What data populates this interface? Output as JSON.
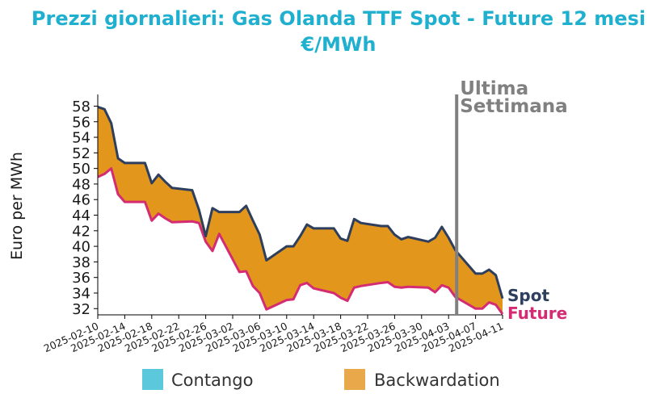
{
  "chart_data": {
    "type": "area",
    "title_line1": "Prezzi giornalieri: Gas Olanda TTF Spot - Future 12 mesi",
    "title_line2": "€/MWh",
    "ylabel": "Euro per MWh",
    "xlabel": "",
    "ylim": [
      31.2,
      59.5
    ],
    "yticks": [
      32,
      34,
      36,
      38,
      40,
      42,
      44,
      46,
      48,
      50,
      52,
      54,
      56,
      58
    ],
    "xticks": [
      "2025-02-10",
      "2025-02-14",
      "2025-02-18",
      "2025-02-22",
      "2025-02-26",
      "2025-03-02",
      "2025-03-06",
      "2025-03-10",
      "2025-03-14",
      "2025-03-18",
      "2025-03-22",
      "2025-03-26",
      "2025-03-30",
      "2025-04-03",
      "2025-04-07",
      "2025-04-11"
    ],
    "x_start": "2025-02-10",
    "x_end": "2025-04-11",
    "dates": [
      "2025-02-10",
      "2025-02-11",
      "2025-02-12",
      "2025-02-13",
      "2025-02-14",
      "2025-02-17",
      "2025-02-18",
      "2025-02-19",
      "2025-02-20",
      "2025-02-21",
      "2025-02-24",
      "2025-02-25",
      "2025-02-26",
      "2025-02-27",
      "2025-02-28",
      "2025-03-03",
      "2025-03-04",
      "2025-03-05",
      "2025-03-06",
      "2025-03-07",
      "2025-03-10",
      "2025-03-11",
      "2025-03-12",
      "2025-03-13",
      "2025-03-14",
      "2025-03-17",
      "2025-03-18",
      "2025-03-19",
      "2025-03-20",
      "2025-03-21",
      "2025-03-24",
      "2025-03-25",
      "2025-03-26",
      "2025-03-27",
      "2025-03-28",
      "2025-03-31",
      "2025-04-01",
      "2025-04-02",
      "2025-04-03",
      "2025-04-04",
      "2025-04-07",
      "2025-04-08",
      "2025-04-09",
      "2025-04-10",
      "2025-04-11"
    ],
    "series": [
      {
        "name": "Spot",
        "color": "#2e3f5e",
        "values": [
          57.9,
          57.6,
          55.8,
          51.3,
          50.7,
          50.7,
          48.1,
          49.2,
          48.3,
          47.5,
          47.2,
          44.7,
          41.3,
          44.9,
          44.4,
          44.4,
          45.2,
          43.3,
          41.5,
          38.2,
          40.0,
          40.0,
          41.3,
          42.8,
          42.3,
          42.3,
          41.0,
          40.7,
          43.5,
          43.0,
          42.6,
          42.6,
          41.5,
          40.9,
          41.2,
          40.6,
          41.1,
          42.5,
          41.1,
          39.5,
          36.5,
          36.5,
          37.0,
          36.3,
          33.3
        ]
      },
      {
        "name": "Future",
        "color": "#d42b73",
        "values": [
          48.9,
          49.3,
          50.0,
          46.7,
          45.7,
          45.7,
          43.3,
          44.2,
          43.6,
          43.1,
          43.2,
          43.0,
          40.6,
          39.4,
          41.6,
          36.7,
          36.8,
          34.9,
          34.0,
          31.9,
          33.1,
          33.2,
          35.0,
          35.3,
          34.6,
          34.0,
          33.4,
          33.0,
          34.7,
          34.9,
          35.3,
          35.4,
          34.8,
          34.7,
          34.8,
          34.7,
          34.1,
          35.0,
          34.7,
          33.5,
          32.0,
          32.0,
          32.8,
          32.5,
          31.3
        ]
      }
    ],
    "vline_date": "2025-04-03",
    "vline_color": "#808080",
    "annotation_line1": "Ultima",
    "annotation_line2": "Settimana",
    "end_labels": [
      "Spot",
      "Future"
    ],
    "legend": [
      {
        "label": "Contango",
        "color": "#5bc8dc"
      },
      {
        "label": "Backwardation",
        "color": "#e9a84a"
      }
    ],
    "legend_position": "bottom",
    "fill_color": "#e3961c",
    "title_color": "#1fb0cf",
    "grid": false
  }
}
